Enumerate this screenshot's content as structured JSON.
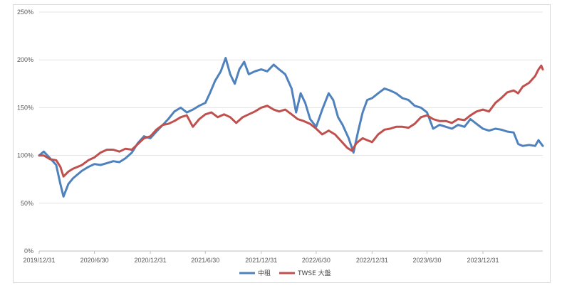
{
  "chart_data": {
    "type": "line",
    "title": "",
    "xlabel": "",
    "ylabel": "",
    "ylim": [
      0,
      250
    ],
    "grid": "horizontal",
    "legend": "bottom",
    "y_ticks": [
      "0%",
      "50%",
      "100%",
      "150%",
      "200%",
      "250%"
    ],
    "x_ticks": [
      "2019/12/31",
      "2020/6/30",
      "2020/12/31",
      "2021/6/30",
      "2021/12/31",
      "2022/6/30",
      "2022/12/31",
      "2023/6/30",
      "2023/12/31"
    ],
    "x_dates": [
      "2019-12-31",
      "2020-06-30",
      "2020-12-31",
      "2021-06-30",
      "2021-12-31",
      "2022-06-30",
      "2022-12-31",
      "2023-06-30",
      "2023-12-31"
    ],
    "x_range": [
      "2019-12-31",
      "2024-07-15"
    ],
    "series": [
      {
        "name": "中租",
        "color": "#4f81bd",
        "points": [
          [
            "2019-12-31",
            100
          ],
          [
            "2020-01-15",
            104
          ],
          [
            "2020-02-05",
            97
          ],
          [
            "2020-02-25",
            90
          ],
          [
            "2020-03-10",
            70
          ],
          [
            "2020-03-20",
            57
          ],
          [
            "2020-04-05",
            70
          ],
          [
            "2020-04-20",
            76
          ],
          [
            "2020-05-05",
            80
          ],
          [
            "2020-05-20",
            84
          ],
          [
            "2020-06-10",
            88
          ],
          [
            "2020-06-30",
            91
          ],
          [
            "2020-07-20",
            90
          ],
          [
            "2020-08-10",
            92
          ],
          [
            "2020-08-31",
            94
          ],
          [
            "2020-09-20",
            93
          ],
          [
            "2020-10-10",
            97
          ],
          [
            "2020-10-31",
            103
          ],
          [
            "2020-11-20",
            113
          ],
          [
            "2020-12-10",
            120
          ],
          [
            "2020-12-31",
            118
          ],
          [
            "2021-01-20",
            125
          ],
          [
            "2021-02-10",
            132
          ],
          [
            "2021-02-28",
            138
          ],
          [
            "2021-03-20",
            146
          ],
          [
            "2021-04-10",
            150
          ],
          [
            "2021-04-30",
            145
          ],
          [
            "2021-05-20",
            148
          ],
          [
            "2021-06-10",
            152
          ],
          [
            "2021-06-30",
            155
          ],
          [
            "2021-07-15",
            165
          ],
          [
            "2021-08-01",
            178
          ],
          [
            "2021-08-20",
            188
          ],
          [
            "2021-09-05",
            202
          ],
          [
            "2021-09-20",
            185
          ],
          [
            "2021-10-05",
            175
          ],
          [
            "2021-10-20",
            190
          ],
          [
            "2021-11-05",
            198
          ],
          [
            "2021-11-20",
            185
          ],
          [
            "2021-12-10",
            188
          ],
          [
            "2021-12-31",
            190
          ],
          [
            "2022-01-20",
            188
          ],
          [
            "2022-02-10",
            195
          ],
          [
            "2022-02-28",
            190
          ],
          [
            "2022-03-20",
            185
          ],
          [
            "2022-04-10",
            170
          ],
          [
            "2022-04-25",
            145
          ],
          [
            "2022-05-10",
            165
          ],
          [
            "2022-05-25",
            155
          ],
          [
            "2022-06-10",
            138
          ],
          [
            "2022-06-30",
            130
          ],
          [
            "2022-07-20",
            148
          ],
          [
            "2022-08-10",
            165
          ],
          [
            "2022-08-25",
            158
          ],
          [
            "2022-09-10",
            140
          ],
          [
            "2022-09-25",
            132
          ],
          [
            "2022-10-15",
            118
          ],
          [
            "2022-10-31",
            103
          ],
          [
            "2022-11-15",
            125
          ],
          [
            "2022-11-30",
            145
          ],
          [
            "2022-12-15",
            158
          ],
          [
            "2022-12-31",
            160
          ],
          [
            "2023-01-20",
            165
          ],
          [
            "2023-02-10",
            170
          ],
          [
            "2023-02-28",
            168
          ],
          [
            "2023-03-20",
            165
          ],
          [
            "2023-04-10",
            160
          ],
          [
            "2023-04-30",
            158
          ],
          [
            "2023-05-20",
            152
          ],
          [
            "2023-06-10",
            150
          ],
          [
            "2023-06-30",
            145
          ],
          [
            "2023-07-20",
            128
          ],
          [
            "2023-08-10",
            132
          ],
          [
            "2023-08-31",
            130
          ],
          [
            "2023-09-20",
            128
          ],
          [
            "2023-10-10",
            132
          ],
          [
            "2023-10-31",
            130
          ],
          [
            "2023-11-20",
            138
          ],
          [
            "2023-12-10",
            133
          ],
          [
            "2023-12-31",
            128
          ],
          [
            "2024-01-20",
            126
          ],
          [
            "2024-02-10",
            128
          ],
          [
            "2024-02-29",
            127
          ],
          [
            "2024-03-20",
            125
          ],
          [
            "2024-04-10",
            124
          ],
          [
            "2024-04-25",
            112
          ],
          [
            "2024-05-10",
            110
          ],
          [
            "2024-05-31",
            111
          ],
          [
            "2024-06-20",
            110
          ],
          [
            "2024-07-01",
            116
          ],
          [
            "2024-07-15",
            110
          ]
        ]
      },
      {
        "name": "TWSE 大盤",
        "color": "#c0504d",
        "points": [
          [
            "2019-12-31",
            100
          ],
          [
            "2020-01-15",
            100
          ],
          [
            "2020-02-05",
            96
          ],
          [
            "2020-02-25",
            95
          ],
          [
            "2020-03-10",
            88
          ],
          [
            "2020-03-20",
            78
          ],
          [
            "2020-04-05",
            83
          ],
          [
            "2020-04-20",
            86
          ],
          [
            "2020-05-05",
            88
          ],
          [
            "2020-05-20",
            90
          ],
          [
            "2020-06-10",
            95
          ],
          [
            "2020-06-30",
            98
          ],
          [
            "2020-07-20",
            103
          ],
          [
            "2020-08-10",
            106
          ],
          [
            "2020-08-31",
            106
          ],
          [
            "2020-09-20",
            104
          ],
          [
            "2020-10-10",
            107
          ],
          [
            "2020-10-31",
            106
          ],
          [
            "2020-11-20",
            112
          ],
          [
            "2020-12-10",
            118
          ],
          [
            "2020-12-31",
            120
          ],
          [
            "2021-01-20",
            127
          ],
          [
            "2021-02-10",
            132
          ],
          [
            "2021-02-28",
            133
          ],
          [
            "2021-03-20",
            136
          ],
          [
            "2021-04-10",
            140
          ],
          [
            "2021-04-30",
            142
          ],
          [
            "2021-05-20",
            130
          ],
          [
            "2021-06-10",
            138
          ],
          [
            "2021-06-30",
            143
          ],
          [
            "2021-07-20",
            145
          ],
          [
            "2021-08-10",
            140
          ],
          [
            "2021-08-31",
            143
          ],
          [
            "2021-09-20",
            140
          ],
          [
            "2021-10-10",
            134
          ],
          [
            "2021-10-31",
            140
          ],
          [
            "2021-11-20",
            143
          ],
          [
            "2021-12-10",
            146
          ],
          [
            "2021-12-31",
            150
          ],
          [
            "2022-01-20",
            152
          ],
          [
            "2022-02-10",
            148
          ],
          [
            "2022-02-28",
            146
          ],
          [
            "2022-03-20",
            148
          ],
          [
            "2022-04-10",
            143
          ],
          [
            "2022-04-30",
            138
          ],
          [
            "2022-05-20",
            136
          ],
          [
            "2022-06-10",
            133
          ],
          [
            "2022-06-30",
            128
          ],
          [
            "2022-07-20",
            122
          ],
          [
            "2022-08-10",
            126
          ],
          [
            "2022-08-31",
            122
          ],
          [
            "2022-09-20",
            115
          ],
          [
            "2022-10-10",
            108
          ],
          [
            "2022-10-25",
            105
          ],
          [
            "2022-11-10",
            113
          ],
          [
            "2022-11-30",
            118
          ],
          [
            "2022-12-15",
            116
          ],
          [
            "2022-12-31",
            114
          ],
          [
            "2023-01-20",
            122
          ],
          [
            "2023-02-10",
            127
          ],
          [
            "2023-02-28",
            128
          ],
          [
            "2023-03-20",
            130
          ],
          [
            "2023-04-10",
            130
          ],
          [
            "2023-04-30",
            129
          ],
          [
            "2023-05-20",
            133
          ],
          [
            "2023-06-10",
            140
          ],
          [
            "2023-06-30",
            142
          ],
          [
            "2023-07-20",
            138
          ],
          [
            "2023-08-10",
            136
          ],
          [
            "2023-08-31",
            136
          ],
          [
            "2023-09-20",
            134
          ],
          [
            "2023-10-10",
            138
          ],
          [
            "2023-10-31",
            137
          ],
          [
            "2023-11-20",
            142
          ],
          [
            "2023-12-10",
            146
          ],
          [
            "2023-12-31",
            148
          ],
          [
            "2024-01-20",
            146
          ],
          [
            "2024-02-10",
            155
          ],
          [
            "2024-02-29",
            160
          ],
          [
            "2024-03-20",
            166
          ],
          [
            "2024-04-10",
            168
          ],
          [
            "2024-04-25",
            165
          ],
          [
            "2024-05-10",
            172
          ],
          [
            "2024-05-31",
            176
          ],
          [
            "2024-06-20",
            183
          ],
          [
            "2024-07-01",
            190
          ],
          [
            "2024-07-10",
            194
          ],
          [
            "2024-07-15",
            190
          ]
        ]
      }
    ]
  }
}
